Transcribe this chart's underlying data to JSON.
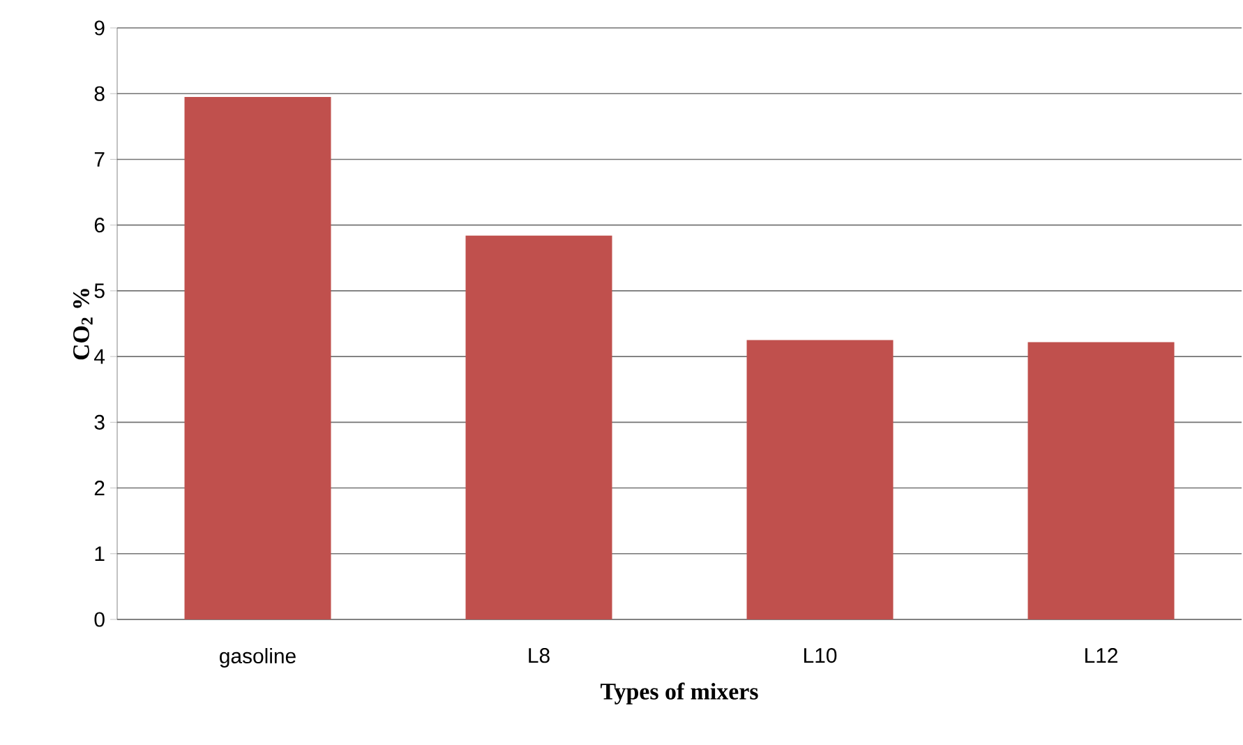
{
  "chart_data": {
    "type": "bar",
    "xlabel": "Types of mixers",
    "ylabel": "CO$_{2}$ %",
    "categories": [
      "gasoline",
      "L8",
      "L10",
      "L12"
    ],
    "values": [
      7.95,
      5.84,
      4.25,
      4.22
    ],
    "color": "#c0504d",
    "ylim": [
      0,
      9
    ],
    "yticks": [
      0,
      1,
      2,
      3,
      4,
      5,
      6,
      7,
      8,
      9
    ],
    "grid": "y"
  }
}
